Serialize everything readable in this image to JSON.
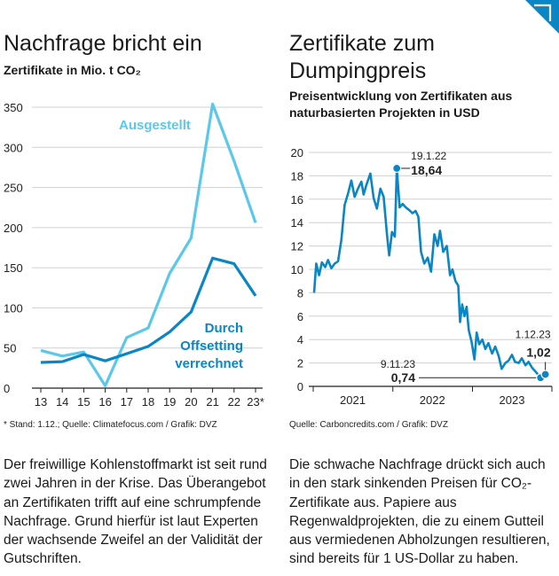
{
  "colors": {
    "accent_light": "#5bc8ea",
    "accent_dark": "#0a86c4",
    "grid": "#d0d0d0",
    "axis": "#222222"
  },
  "left": {
    "title": "Nachfrage bricht ein",
    "subtitle": "Zertifikate in Mio. t CO₂",
    "source": "* Stand: 1.12.; Quelle: Climatefocus.com / Grafik: DVZ",
    "text": "Der freiwillige Kohlenstoffmarkt ist seit rund zwei Jahren in der Krise. Das Überangebot an Zertifikaten trifft auf eine schrumpfende Nachfrage. Grund hierfür ist laut Experten der wachsende Zweifel an der Validität der Gutschriften."
  },
  "right": {
    "title": "Zertifikate zum Dumpingpreis",
    "subtitle": "Preisentwicklung von Zertifikaten aus naturbasierten Projekten in USD",
    "source": "Quelle: Carboncredits.com / Grafik: DVZ",
    "text": "Die schwache Nachfrage drückt sich auch in den stark sinkenden Preisen für CO₂-Zertifikate aus. Papiere aus Regenwaldprojekten, die zu einem Gutteil aus vermiedenen Abholzungen resultieren, sind bereits für 1 US-Dollar zu haben."
  },
  "chart_data": [
    {
      "type": "line",
      "title": "Nachfrage bricht ein",
      "subtitle": "Zertifikate in Mio. t CO₂",
      "x": [
        "13",
        "14",
        "15",
        "16",
        "17",
        "18",
        "19",
        "20",
        "21",
        "22",
        "23*"
      ],
      "ylim": [
        0,
        350
      ],
      "yticks": [
        0,
        50,
        100,
        150,
        200,
        250,
        300,
        350
      ],
      "grid": true,
      "series": [
        {
          "name": "Ausgestellt",
          "color": "#5bc8ea",
          "values": [
            47,
            40,
            45,
            3,
            63,
            75,
            143,
            187,
            354,
            283,
            206
          ]
        },
        {
          "name": "Durch Offsetting verrechnet",
          "color": "#0a86c4",
          "values": [
            32,
            33,
            42,
            34,
            43,
            52,
            70,
            95,
            162,
            155,
            115
          ]
        }
      ]
    },
    {
      "type": "line",
      "title": "Zertifikate zum Dumpingpreis",
      "subtitle": "Preisentwicklung von Zertifikaten aus naturbasierten Projekten in USD",
      "x_range": [
        "2021-01-01",
        "2023-12-31"
      ],
      "xticks": [
        "2021",
        "2022",
        "2023"
      ],
      "ylim": [
        0,
        20
      ],
      "yticks": [
        0,
        2,
        4,
        6,
        8,
        10,
        12,
        14,
        16,
        18,
        20
      ],
      "grid": true,
      "series": [
        {
          "name": "",
          "color": "#0a86c4",
          "points": [
            [
              "2021-01-05",
              8
            ],
            [
              "2021-01-15",
              10.5
            ],
            [
              "2021-01-28",
              9.5
            ],
            [
              "2021-02-10",
              10.6
            ],
            [
              "2021-02-25",
              10.2
            ],
            [
              "2021-03-10",
              10.8
            ],
            [
              "2021-03-25",
              10.1
            ],
            [
              "2021-04-10",
              10.5
            ],
            [
              "2021-04-25",
              10.7
            ],
            [
              "2021-05-10",
              12.5
            ],
            [
              "2021-05-25",
              15.5
            ],
            [
              "2021-06-10",
              16.5
            ],
            [
              "2021-06-25",
              17.6
            ],
            [
              "2021-07-10",
              16.2
            ],
            [
              "2021-07-25",
              16.9
            ],
            [
              "2021-08-10",
              17.5
            ],
            [
              "2021-08-20",
              16.4
            ],
            [
              "2021-09-01",
              17.2
            ],
            [
              "2021-09-20",
              18.2
            ],
            [
              "2021-10-05",
              16.1
            ],
            [
              "2021-10-20",
              15.2
            ],
            [
              "2021-11-05",
              16.9
            ],
            [
              "2021-11-20",
              16.2
            ],
            [
              "2021-12-05",
              13
            ],
            [
              "2021-12-15",
              11.2
            ],
            [
              "2021-12-28",
              13.2
            ],
            [
              "2022-01-10",
              12.8
            ],
            [
              "2022-01-19",
              18.64
            ],
            [
              "2022-02-01",
              15.3
            ],
            [
              "2022-02-15",
              15.6
            ],
            [
              "2022-03-01",
              15.3
            ],
            [
              "2022-03-15",
              15.1
            ],
            [
              "2022-04-01",
              14.8
            ],
            [
              "2022-04-15",
              15.0
            ],
            [
              "2022-04-28",
              14.5
            ],
            [
              "2022-05-10",
              11.5
            ],
            [
              "2022-05-25",
              10.5
            ],
            [
              "2022-06-10",
              11
            ],
            [
              "2022-06-25",
              9.8
            ],
            [
              "2022-07-10",
              13
            ],
            [
              "2022-07-25",
              12
            ],
            [
              "2022-08-05",
              13.3
            ],
            [
              "2022-08-20",
              11.5
            ],
            [
              "2022-09-05",
              12
            ],
            [
              "2022-09-20",
              9.5
            ],
            [
              "2022-10-01",
              10
            ],
            [
              "2022-10-15",
              9
            ],
            [
              "2022-10-28",
              8.6
            ],
            [
              "2022-11-05",
              5.5
            ],
            [
              "2022-11-15",
              7
            ],
            [
              "2022-11-25",
              6
            ],
            [
              "2022-12-05",
              6.8
            ],
            [
              "2022-12-15",
              4.8
            ],
            [
              "2022-12-28",
              3.8
            ],
            [
              "2023-01-10",
              2.3
            ],
            [
              "2023-01-20",
              4.6
            ],
            [
              "2023-02-01",
              3.6
            ],
            [
              "2023-02-15",
              4
            ],
            [
              "2023-03-01",
              3.2
            ],
            [
              "2023-03-15",
              3.7
            ],
            [
              "2023-04-01",
              2.8
            ],
            [
              "2023-04-15",
              3.4
            ],
            [
              "2023-05-01",
              2.6
            ],
            [
              "2023-05-15",
              1.5
            ],
            [
              "2023-06-01",
              2
            ],
            [
              "2023-06-15",
              2.2
            ],
            [
              "2023-07-01",
              2.7
            ],
            [
              "2023-07-15",
              2.1
            ],
            [
              "2023-08-01",
              2
            ],
            [
              "2023-08-15",
              2.4
            ],
            [
              "2023-09-01",
              1.8
            ],
            [
              "2023-09-15",
              2.1
            ],
            [
              "2023-10-01",
              1.6
            ],
            [
              "2023-10-20",
              1.2
            ],
            [
              "2023-11-09",
              0.74
            ],
            [
              "2023-11-20",
              0.85
            ],
            [
              "2023-12-01",
              1.02
            ]
          ]
        }
      ],
      "annotations": [
        {
          "date_label": "19.1.22",
          "value_label": "18,64",
          "x": "2022-01-19",
          "y": 18.64
        },
        {
          "date_label": "9.11.23",
          "value_label": "0,74",
          "x": "2023-11-09",
          "y": 0.74
        },
        {
          "date_label": "1.12.23",
          "value_label": "1,02",
          "x": "2023-12-01",
          "y": 1.02
        }
      ]
    }
  ]
}
